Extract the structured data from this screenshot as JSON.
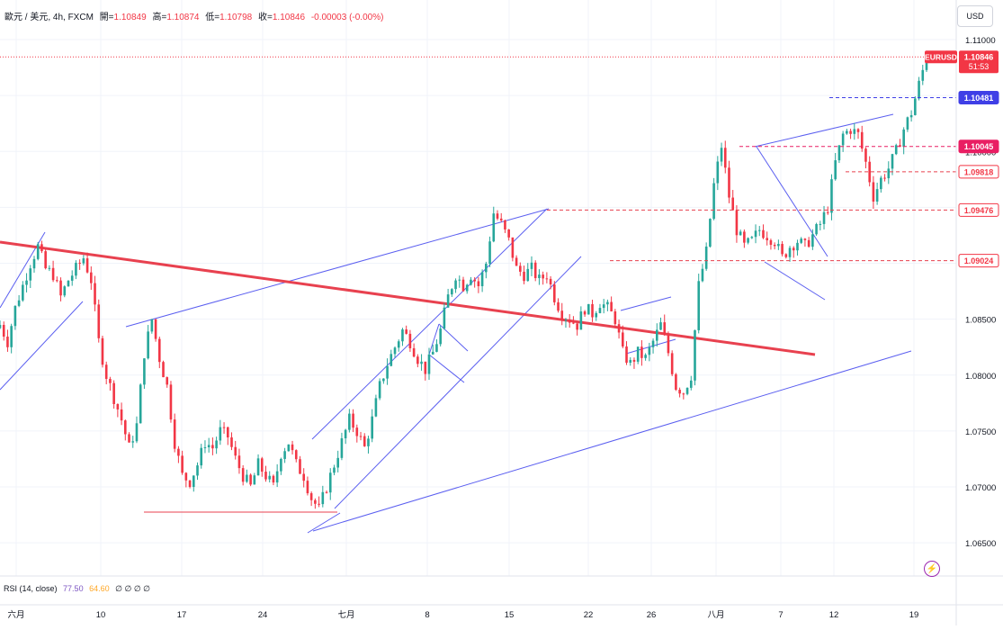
{
  "legend": {
    "symbol_text": "歐元 / 美元, 4h, FXCM",
    "open_label": "開=",
    "open": "1.10849",
    "high_label": "高=",
    "high": "1.10874",
    "low_label": "低=",
    "low": "1.10798",
    "close_label": "收=",
    "close": "1.10846",
    "change": "-0.00003 (-0.00%)"
  },
  "currency_button": "USD",
  "price_tag": {
    "symbol": "EURUSD",
    "price": "1.10846",
    "countdown": "51:53"
  },
  "level_labels": [
    "1.10481",
    "1.10045",
    "1.09818",
    "1.09476",
    "1.09024"
  ],
  "rsi": {
    "label": "RSI (14, close)",
    "v1": "77.50",
    "v2": "64.60",
    "rest": "∅ ∅ ∅ ∅"
  },
  "icons": {
    "alert": "lightning-icon"
  },
  "colors": {
    "up": "#26a69a",
    "down": "#f23645",
    "channel": "#5b5ff0",
    "trend": "#e8414f",
    "level": "#e8414f",
    "blue_tag": "#3f3fe6",
    "pink_tag": "#e91e63"
  },
  "chart_data": {
    "type": "candlestick",
    "interval": "4h",
    "x_tick_labels": [
      "六月",
      "10",
      "17",
      "24",
      "七月",
      "8",
      "15",
      "22",
      "26",
      "八月",
      "7",
      "12",
      "19"
    ],
    "y_tick_labels": [
      "1.11000",
      "1.10500",
      "1.10000",
      "1.09500",
      "1.09000",
      "1.08500",
      "1.08000",
      "1.07500",
      "1.07000",
      "1.06500"
    ],
    "ylim": [
      1.063,
      1.1125
    ],
    "grid": true,
    "close_path": [
      [
        0,
        1.0845
      ],
      [
        2,
        1.083
      ],
      [
        4,
        1.086
      ],
      [
        6,
        1.088
      ],
      [
        8,
        1.09
      ],
      [
        10,
        1.0915
      ],
      [
        12,
        1.0895
      ],
      [
        14,
        1.089
      ],
      [
        16,
        1.087
      ],
      [
        18,
        1.0885
      ],
      [
        20,
        1.0895
      ],
      [
        22,
        1.0905
      ],
      [
        24,
        1.0885
      ],
      [
        26,
        1.083
      ],
      [
        28,
        1.08
      ],
      [
        30,
        1.078
      ],
      [
        32,
        1.076
      ],
      [
        34,
        1.0735
      ],
      [
        36,
        1.0755
      ],
      [
        38,
        1.082
      ],
      [
        40,
        1.085
      ],
      [
        42,
        1.0815
      ],
      [
        44,
        1.079
      ],
      [
        46,
        1.074
      ],
      [
        48,
        1.071
      ],
      [
        50,
        1.0705
      ],
      [
        52,
        1.072
      ],
      [
        54,
        1.074
      ],
      [
        56,
        1.0735
      ],
      [
        58,
        1.075
      ],
      [
        60,
        1.0745
      ],
      [
        62,
        1.0725
      ],
      [
        64,
        1.071
      ],
      [
        66,
        1.07
      ],
      [
        68,
        1.072
      ],
      [
        70,
        1.071
      ],
      [
        72,
        1.07
      ],
      [
        74,
        1.073
      ],
      [
        76,
        1.074
      ],
      [
        78,
        1.072
      ],
      [
        80,
        1.071
      ],
      [
        82,
        1.069
      ],
      [
        84,
        1.068
      ],
      [
        86,
        1.07
      ],
      [
        88,
        1.072
      ],
      [
        90,
        1.074
      ],
      [
        92,
        1.076
      ],
      [
        94,
        1.075
      ],
      [
        96,
        1.0735
      ],
      [
        98,
        1.076
      ],
      [
        100,
        1.079
      ],
      [
        102,
        1.081
      ],
      [
        104,
        1.0825
      ],
      [
        106,
        1.084
      ],
      [
        108,
        1.083
      ],
      [
        110,
        1.0815
      ],
      [
        112,
        1.0805
      ],
      [
        114,
        1.082
      ],
      [
        116,
        1.084
      ],
      [
        118,
        1.087
      ],
      [
        120,
        1.089
      ],
      [
        122,
        1.088
      ],
      [
        124,
        1.089
      ],
      [
        126,
        1.088
      ],
      [
        128,
        1.09
      ],
      [
        130,
        1.0945
      ],
      [
        132,
        1.0935
      ],
      [
        134,
        1.092
      ],
      [
        136,
        1.0895
      ],
      [
        138,
        1.089
      ],
      [
        140,
        1.0895
      ],
      [
        142,
        1.0885
      ],
      [
        144,
        1.089
      ],
      [
        146,
        1.087
      ],
      [
        148,
        1.0855
      ],
      [
        150,
        1.085
      ],
      [
        152,
        1.0845
      ],
      [
        154,
        1.086
      ],
      [
        156,
        1.0855
      ],
      [
        158,
        1.0865
      ],
      [
        160,
        1.086
      ],
      [
        162,
        1.085
      ],
      [
        164,
        1.082
      ],
      [
        166,
        1.081
      ],
      [
        168,
        1.082
      ],
      [
        170,
        1.0815
      ],
      [
        172,
        1.083
      ],
      [
        174,
        1.0845
      ],
      [
        176,
        1.082
      ],
      [
        178,
        1.079
      ],
      [
        180,
        1.0785
      ],
      [
        182,
        1.08
      ],
      [
        184,
        1.088
      ],
      [
        186,
        1.091
      ],
      [
        188,
        1.097
      ],
      [
        190,
        1.1005
      ],
      [
        192,
        1.096
      ],
      [
        194,
        1.093
      ],
      [
        196,
        1.0915
      ],
      [
        198,
        1.092
      ],
      [
        200,
        1.093
      ],
      [
        202,
        1.0925
      ],
      [
        204,
        1.092
      ],
      [
        206,
        1.0905
      ],
      [
        208,
        1.0915
      ],
      [
        210,
        1.092
      ],
      [
        212,
        1.0915
      ],
      [
        214,
        1.0925
      ],
      [
        216,
        1.0935
      ],
      [
        218,
        1.095
      ],
      [
        220,
        1.099
      ],
      [
        222,
        1.1015
      ],
      [
        224,
        1.102
      ],
      [
        226,
        1.1015
      ],
      [
        228,
        1.099
      ],
      [
        230,
        1.096
      ],
      [
        232,
        1.0975
      ],
      [
        234,
        1.0985
      ],
      [
        236,
        1.1
      ],
      [
        238,
        1.102
      ],
      [
        240,
        1.1035
      ],
      [
        242,
        1.106
      ],
      [
        244,
        1.10846
      ]
    ],
    "levels": [
      {
        "value": 1.10481,
        "style": "dashed",
        "color": "#3f3fe6"
      },
      {
        "value": 1.10045,
        "style": "dashed",
        "color": "#e91e63"
      },
      {
        "value": 1.09818,
        "style": "dashed",
        "color": "#e8414f"
      },
      {
        "value": 1.09476,
        "style": "dashed",
        "color": "#e8414f"
      },
      {
        "value": 1.09024,
        "style": "dashed",
        "color": "#e8414f"
      },
      {
        "value": 1.06775,
        "style": "solid",
        "color": "#e8414f"
      }
    ],
    "last_price": 1.10846
  }
}
